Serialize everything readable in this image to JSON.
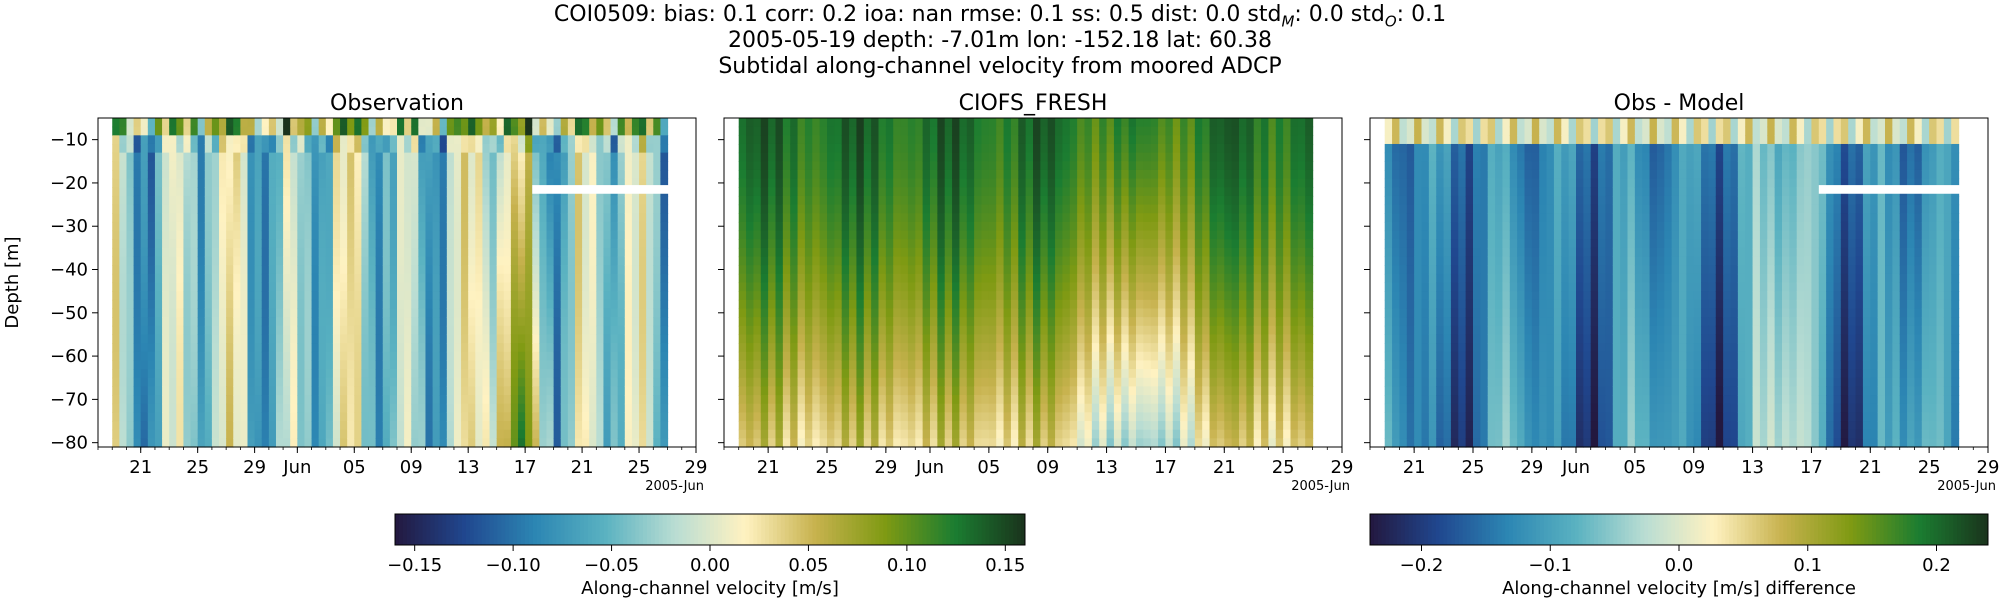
{
  "figure": {
    "header": {
      "station": "COI0509:",
      "bias": "bias: 0.1",
      "corr": "corr: 0.2",
      "ioa": "ioa: nan",
      "rmse": "rmse: 0.1",
      "ss": "ss: 0.5",
      "dist": "dist: 0.0",
      "stdm_label": "std",
      "stdm_sub": "M",
      "stdm_value": ": 0.0",
      "stdo_label": "std",
      "stdo_sub": "O",
      "stdo_value": ": 0.1",
      "line2": "2005-05-19 depth: -7.01m lon: -152.18 lat: 60.38",
      "line3": "Subtidal along-channel velocity from moored ADCP"
    }
  },
  "colors": {
    "cmap": [
      "#23183f",
      "#20478f",
      "#2c86b3",
      "#5ab2c1",
      "#b9ddd3",
      "#fff2c1",
      "#c7b24e",
      "#7f9a13",
      "#1b7d31",
      "#1a331c"
    ],
    "gap": "#ffffff",
    "frame": "#000000"
  },
  "chart_data": [
    {
      "type": "heatmap",
      "title": "Observation",
      "ylabel": "Depth [m]",
      "xlabel": "",
      "x_start": "2005-05-19",
      "x_end": "2005-06-27",
      "xlim": [
        "2005-05-18",
        "2005-06-29"
      ],
      "ylim": [
        -81,
        -5
      ],
      "depth_range": [
        -80,
        -6
      ],
      "depth_step": 2,
      "time_step_days": 0.5,
      "gaps": [
        {
          "from": "2005-06-17T12:00",
          "to": "2005-06-27T23:59",
          "depth_range": [
            -22.5,
            -20.5
          ]
        }
      ],
      "xticks": [
        "21",
        "25",
        "29",
        "Jun",
        "05",
        "09",
        "13",
        "17",
        "21",
        "25",
        "29"
      ],
      "xtick_dates": [
        "2005-05-21",
        "2005-05-25",
        "2005-05-29",
        "2005-06-01",
        "2005-06-05",
        "2005-06-09",
        "2005-06-13",
        "2005-06-17",
        "2005-06-21",
        "2005-06-25",
        "2005-06-29"
      ],
      "x_offset_label": "2005-Jun",
      "yticks": [
        -10,
        -20,
        -30,
        -40,
        -50,
        -60,
        -70,
        -80
      ],
      "clim": [
        -0.16,
        0.16
      ],
      "colormap": "delta"
    },
    {
      "type": "heatmap",
      "title": "CIOFS_FRESH",
      "xlabel": "",
      "x_start": "2005-05-19",
      "x_end": "2005-06-27",
      "xlim": [
        "2005-05-18",
        "2005-06-29"
      ],
      "ylim": [
        -81,
        -5
      ],
      "depth_range": [
        -80,
        -6
      ],
      "depth_step": 2,
      "time_step_days": 0.5,
      "xticks": [
        "21",
        "25",
        "29",
        "Jun",
        "05",
        "09",
        "13",
        "17",
        "21",
        "25",
        "29"
      ],
      "xtick_dates": [
        "2005-05-21",
        "2005-05-25",
        "2005-05-29",
        "2005-06-01",
        "2005-06-05",
        "2005-06-09",
        "2005-06-13",
        "2005-06-17",
        "2005-06-21",
        "2005-06-25",
        "2005-06-29"
      ],
      "x_offset_label": "2005-Jun",
      "yticks": [
        -10,
        -20,
        -30,
        -40,
        -50,
        -60,
        -70,
        -80
      ],
      "clim": [
        -0.16,
        0.16
      ],
      "colormap": "delta"
    },
    {
      "type": "heatmap",
      "title": "Obs - Model",
      "xlabel": "",
      "x_start": "2005-05-19",
      "x_end": "2005-06-27",
      "xlim": [
        "2005-05-18",
        "2005-06-29"
      ],
      "ylim": [
        -81,
        -5
      ],
      "depth_range": [
        -80,
        -6
      ],
      "depth_step": 2,
      "time_step_days": 0.5,
      "gaps": [
        {
          "from": "2005-06-17T12:00",
          "to": "2005-06-27T23:59",
          "depth_range": [
            -22.5,
            -20.5
          ]
        }
      ],
      "xticks": [
        "21",
        "25",
        "29",
        "Jun",
        "05",
        "09",
        "13",
        "17",
        "21",
        "25",
        "29"
      ],
      "xtick_dates": [
        "2005-05-21",
        "2005-05-25",
        "2005-05-29",
        "2005-06-01",
        "2005-06-05",
        "2005-06-09",
        "2005-06-13",
        "2005-06-17",
        "2005-06-21",
        "2005-06-25",
        "2005-06-29"
      ],
      "x_offset_label": "2005-Jun",
      "yticks": [
        -10,
        -20,
        -30,
        -40,
        -50,
        -60,
        -70,
        -80
      ],
      "clim": [
        -0.24,
        0.24
      ],
      "colormap": "delta"
    }
  ],
  "colorbars": [
    {
      "label": "Along-channel velocity [m/s]",
      "range": [
        -0.16,
        0.16
      ],
      "ticks": [
        -0.15,
        -0.1,
        -0.05,
        0.0,
        0.05,
        0.1,
        0.15
      ],
      "tick_labels": [
        "−0.15",
        "−0.10",
        "−0.05",
        "0.00",
        "0.05",
        "0.10",
        "0.15"
      ]
    },
    {
      "label": "Along-channel velocity [m/s] difference",
      "range": [
        -0.24,
        0.24
      ],
      "ticks": [
        -0.2,
        -0.1,
        0.0,
        0.1,
        0.2
      ],
      "tick_labels": [
        "−0.2",
        "−0.1",
        "0.0",
        "0.1",
        "0.2"
      ]
    }
  ]
}
